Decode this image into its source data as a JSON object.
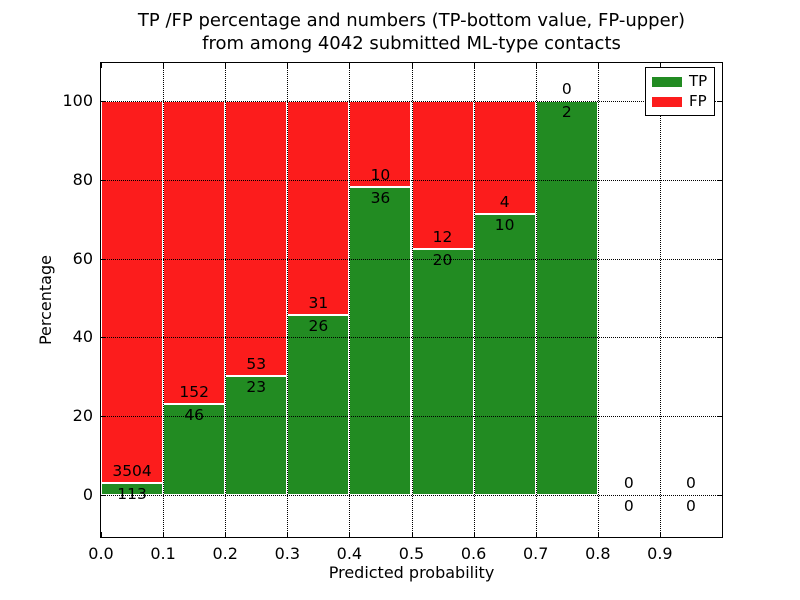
{
  "chart_data": {
    "type": "bar",
    "stacked": true,
    "title_line1": "TP /FP percentage and numbers (TP-bottom value, FP-upper)",
    "title_line2": "from among 4042 submitted ML-type contacts",
    "xlabel": "Predicted probability",
    "ylabel": "Percentage",
    "xlim": [
      0.0,
      1.0
    ],
    "ylim": [
      -10.6,
      109.6
    ],
    "bin_width": 0.1,
    "bin_edges": [
      0.0,
      0.1,
      0.2,
      0.3,
      0.4,
      0.5,
      0.6,
      0.7,
      0.8,
      0.9,
      1.0
    ],
    "categories": [
      "0.0-0.1",
      "0.1-0.2",
      "0.2-0.3",
      "0.3-0.4",
      "0.4-0.5",
      "0.5-0.6",
      "0.6-0.7",
      "0.7-0.8",
      "0.8-0.9",
      "0.9-1.0"
    ],
    "series": [
      {
        "name": "TP",
        "color": "#228b22",
        "counts": [
          113,
          46,
          23,
          26,
          36,
          20,
          10,
          2,
          0,
          0
        ]
      },
      {
        "name": "FP",
        "color": "#fc1c1c",
        "counts": [
          3504,
          152,
          53,
          31,
          10,
          12,
          4,
          0,
          0,
          0
        ]
      }
    ],
    "tp_percent": [
      3.12,
      23.23,
      30.26,
      45.61,
      78.26,
      62.5,
      71.43,
      100.0,
      null,
      null
    ],
    "total_contacts": 4042,
    "bar_edge_color": "#ffffff",
    "grid": {
      "on": true,
      "style": "dotted",
      "color": "#000000"
    },
    "xticks": {
      "values": [
        0.0,
        0.1,
        0.2,
        0.3,
        0.4,
        0.5,
        0.6,
        0.7,
        0.8,
        0.9
      ],
      "labels": [
        "0.0",
        "0.1",
        "0.2",
        "0.3",
        "0.4",
        "0.5",
        "0.6",
        "0.7",
        "0.8",
        "0.9"
      ]
    },
    "yticks": {
      "values": [
        0,
        20,
        40,
        60,
        80,
        100
      ],
      "labels": [
        "0",
        "20",
        "40",
        "60",
        "80",
        "100"
      ]
    },
    "legend": {
      "position": "upper right",
      "entries": [
        "TP",
        "FP"
      ]
    },
    "annotation_note": "FP count printed above the TP/FP boundary, TP count printed below it"
  }
}
